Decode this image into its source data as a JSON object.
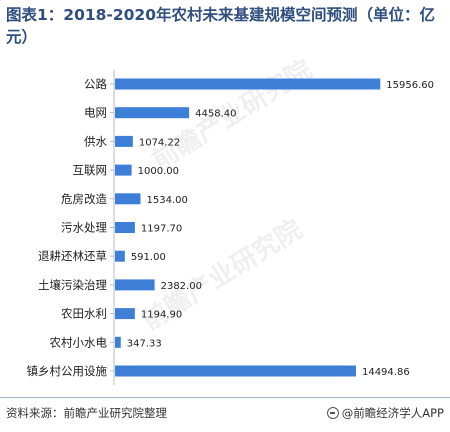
{
  "title": "图表1：2018-2020年农村未来基建规模空间预测（单位：亿元）",
  "footer": {
    "source": "资料来源：前瞻产业研究院整理",
    "app": "@前瞻经济学人APP"
  },
  "watermarks": {
    "text_a": "前瞻产业研究院",
    "text_b": "前瞻产业研究院"
  },
  "colors": {
    "bar": "#3d7fd6",
    "title": "#2f4f7f"
  },
  "chart_data": {
    "type": "bar",
    "orientation": "horizontal",
    "title": "图表1：2018-2020年农村未来基建规模空间预测（单位：亿元）",
    "xlabel": "",
    "ylabel": "",
    "grid": false,
    "legend": "none",
    "categories": [
      "公路",
      "电网",
      "供水",
      "互联网",
      "危房改造",
      "污水处理",
      "退耕还林还草",
      "土壤污染治理",
      "农田水利",
      "农村小水电",
      "镇乡村公用设施"
    ],
    "values": [
      15956.6,
      4458.4,
      1074.22,
      1000.0,
      1534.0,
      1197.7,
      591.0,
      2382.0,
      1194.9,
      347.33,
      14494.86
    ],
    "value_labels": [
      "15956.60",
      "4458.40",
      "1074.22",
      "1000.00",
      "1534.00",
      "1197.70",
      "591.00",
      "2382.00",
      "1194.90",
      "347.33",
      "14494.86"
    ],
    "xlim": [
      0,
      16000
    ]
  }
}
